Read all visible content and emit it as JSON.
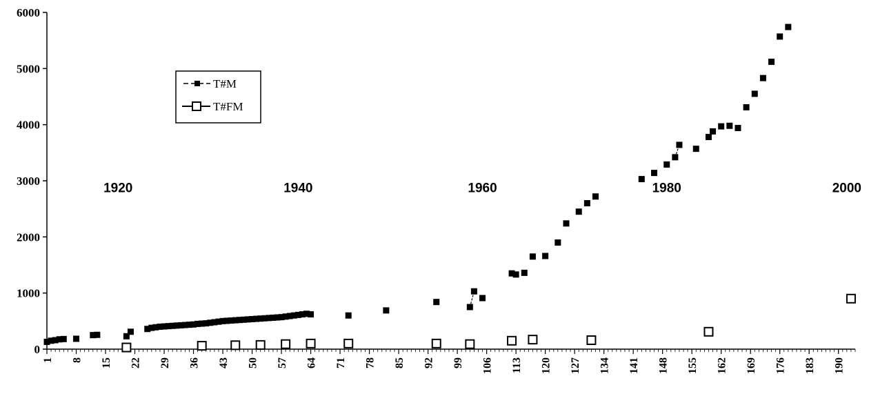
{
  "chart_data": {
    "type": "scatter",
    "title": "",
    "xlabel": "",
    "ylabel": "",
    "ylim": [
      0,
      6000
    ],
    "xlim": [
      1,
      194
    ],
    "y_ticks": [
      0,
      1000,
      2000,
      3000,
      4000,
      5000,
      6000
    ],
    "x_tick_labels": [
      "1",
      "8",
      "15",
      "22",
      "29",
      "36",
      "43",
      "50",
      "57",
      "64",
      "71",
      "78",
      "85",
      "92",
      "99",
      "106",
      "113",
      "120",
      "127",
      "134",
      "141",
      "148",
      "155",
      "162",
      "169",
      "176",
      "183",
      "190"
    ],
    "grid": false,
    "legend_position": "upper-left",
    "annotations": [
      {
        "text": "1920",
        "x": 18,
        "y": 2800
      },
      {
        "text": "1940",
        "x": 61,
        "y": 2800
      },
      {
        "text": "1960",
        "x": 105,
        "y": 2800
      },
      {
        "text": "1980",
        "x": 149,
        "y": 2800
      },
      {
        "text": "2000",
        "x": 192,
        "y": 2800
      }
    ],
    "series": [
      {
        "name": "T#M",
        "marker": "filled-square",
        "color": "#000000",
        "points": [
          [
            1,
            130
          ],
          [
            2,
            150
          ],
          [
            3,
            160
          ],
          [
            4,
            175
          ],
          [
            5,
            180
          ],
          [
            8,
            185
          ],
          [
            12,
            250
          ],
          [
            13,
            255
          ],
          [
            20,
            230
          ],
          [
            21,
            310
          ],
          [
            25,
            360
          ],
          [
            26,
            380
          ],
          [
            27,
            390
          ],
          [
            28,
            400
          ],
          [
            29,
            405
          ],
          [
            30,
            410
          ],
          [
            31,
            415
          ],
          [
            32,
            420
          ],
          [
            33,
            425
          ],
          [
            34,
            430
          ],
          [
            35,
            435
          ],
          [
            36,
            440
          ],
          [
            37,
            450
          ],
          [
            38,
            455
          ],
          [
            39,
            460
          ],
          [
            40,
            470
          ],
          [
            41,
            480
          ],
          [
            42,
            490
          ],
          [
            43,
            500
          ],
          [
            44,
            505
          ],
          [
            45,
            510
          ],
          [
            46,
            515
          ],
          [
            47,
            520
          ],
          [
            48,
            525
          ],
          [
            49,
            530
          ],
          [
            50,
            535
          ],
          [
            51,
            540
          ],
          [
            52,
            545
          ],
          [
            53,
            550
          ],
          [
            54,
            555
          ],
          [
            55,
            560
          ],
          [
            56,
            565
          ],
          [
            57,
            570
          ],
          [
            58,
            580
          ],
          [
            59,
            590
          ],
          [
            60,
            600
          ],
          [
            61,
            610
          ],
          [
            62,
            620
          ],
          [
            63,
            630
          ],
          [
            64,
            620
          ],
          [
            73,
            600
          ],
          [
            82,
            690
          ],
          [
            94,
            840
          ],
          [
            102,
            750
          ],
          [
            103,
            1030
          ],
          [
            105,
            910
          ],
          [
            112,
            1350
          ],
          [
            113,
            1330
          ],
          [
            115,
            1360
          ],
          [
            117,
            1650
          ],
          [
            120,
            1660
          ],
          [
            123,
            1900
          ],
          [
            125,
            2240
          ],
          [
            128,
            2450
          ],
          [
            130,
            2600
          ],
          [
            132,
            2720
          ],
          [
            143,
            3030
          ],
          [
            146,
            3140
          ],
          [
            149,
            3290
          ],
          [
            151,
            3420
          ],
          [
            152,
            3640
          ],
          [
            156,
            3570
          ],
          [
            159,
            3780
          ],
          [
            160,
            3880
          ],
          [
            162,
            3970
          ],
          [
            164,
            3980
          ],
          [
            166,
            3940
          ],
          [
            168,
            4310
          ],
          [
            170,
            4550
          ],
          [
            172,
            4830
          ],
          [
            174,
            5120
          ],
          [
            176,
            5570
          ],
          [
            178,
            5740
          ]
        ]
      },
      {
        "name": "T#FM",
        "marker": "hollow-square",
        "color": "#000000",
        "points": [
          [
            20,
            30
          ],
          [
            38,
            60
          ],
          [
            46,
            70
          ],
          [
            52,
            75
          ],
          [
            58,
            90
          ],
          [
            64,
            100
          ],
          [
            73,
            100
          ],
          [
            94,
            100
          ],
          [
            102,
            90
          ],
          [
            112,
            150
          ],
          [
            117,
            170
          ],
          [
            131,
            160
          ],
          [
            159,
            310
          ],
          [
            193,
            900
          ]
        ]
      }
    ]
  }
}
